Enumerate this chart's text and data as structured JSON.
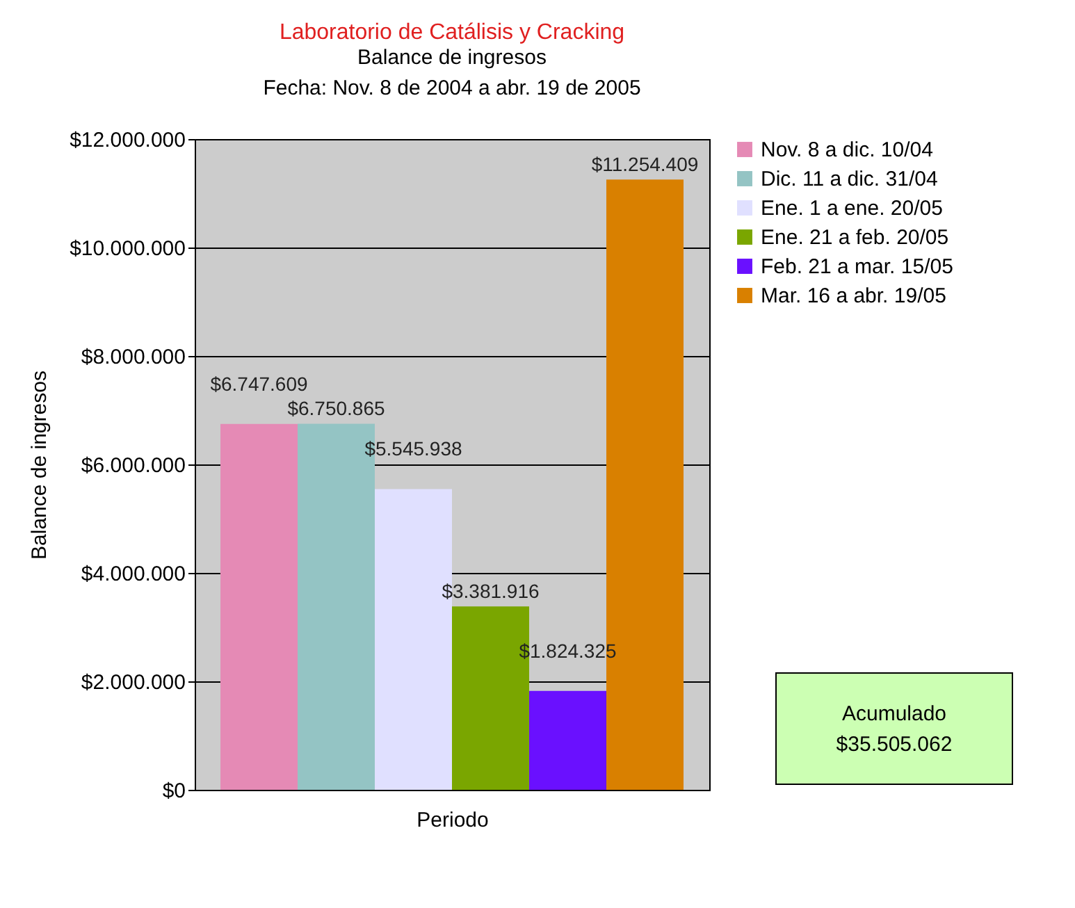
{
  "chart_data": {
    "type": "bar",
    "title": "Laboratorio de Catálisis y Cracking",
    "subtitle": "Balance de ingresos\nFecha: Nov. 8 de 2004 a abr. 19 de 2005",
    "xlabel": "Periodo",
    "ylabel": "Balance de ingresos",
    "categories": [
      null
    ],
    "series": [
      {
        "name": "Nov. 8 a dic. 10/04",
        "color": "#e58ab5",
        "values": [
          6747609
        ],
        "value_labels": [
          "$6.747.609"
        ]
      },
      {
        "name": "Dic. 11 a dic. 31/04",
        "color": "#94c4c4",
        "values": [
          6750865
        ],
        "value_labels": [
          "$6.750.865"
        ]
      },
      {
        "name": "Ene. 1 a ene. 20/05",
        "color": "#e0e0ff",
        "values": [
          5545938
        ],
        "value_labels": [
          "$5.545.938"
        ]
      },
      {
        "name": "Ene. 21 a feb. 20/05",
        "color": "#7aa600",
        "values": [
          3381916
        ],
        "value_labels": [
          "$3.381.916"
        ]
      },
      {
        "name": "Feb. 21 a mar. 15/05",
        "color": "#6a10ff",
        "values": [
          1824325
        ],
        "value_labels": [
          "$1.824.325"
        ]
      },
      {
        "name": "Mar. 16 a abr. 19/05",
        "color": "#d98000",
        "values": [
          11254409
        ],
        "value_labels": [
          "$11.254.409"
        ]
      }
    ],
    "ylim": [
      0,
      12000000
    ],
    "yticks": [
      {
        "value": 0,
        "label": "$0"
      },
      {
        "value": 2000000,
        "label": "$2.000.000"
      },
      {
        "value": 4000000,
        "label": "$4.000.000"
      },
      {
        "value": 6000000,
        "label": "$6.000.000"
      },
      {
        "value": 8000000,
        "label": "$8.000.000"
      },
      {
        "value": 10000000,
        "label": "$10.000.000"
      },
      {
        "value": 12000000,
        "label": "$12.000.000"
      }
    ],
    "grid": "y",
    "legend": "right",
    "annotations": [
      "Acumulado\n$35.505.062"
    ]
  }
}
